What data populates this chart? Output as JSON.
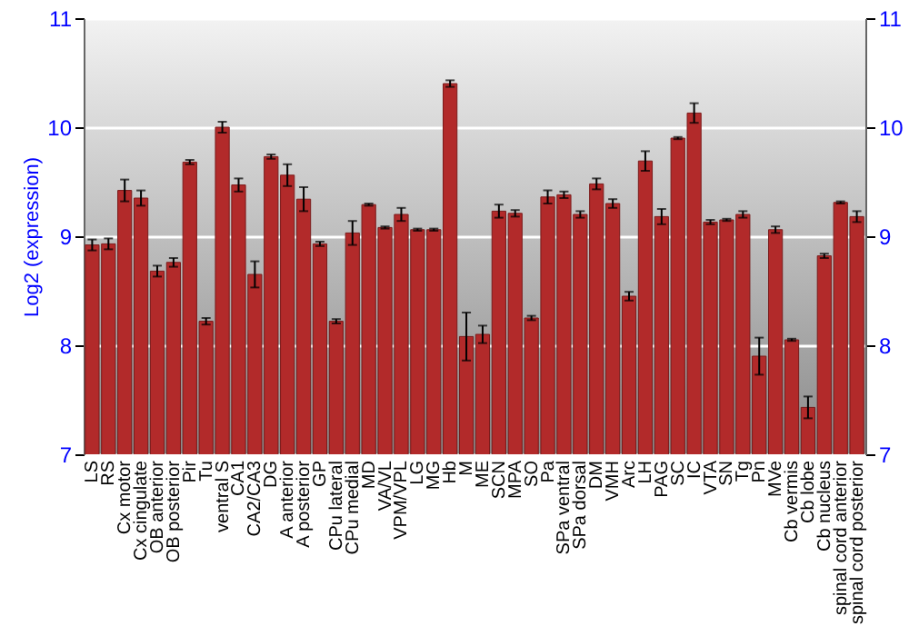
{
  "chart_data": {
    "type": "bar",
    "ylabel": "Log2 (expression)",
    "categories": [
      "LS",
      "RS",
      "Cx motor",
      "Cx cingulate",
      "OB anterior",
      "OB posterior",
      "Pir",
      "Tu",
      "ventral S",
      "CA1",
      "CA2/CA3",
      "DG",
      "A anterior",
      "A posterior",
      "GP",
      "CPu lateral",
      "CPu medial",
      "MD",
      "VA/VL",
      "VPM/VPL",
      "LG",
      "MG",
      "Hb",
      "M",
      "ME",
      "SCN",
      "MPA",
      "SO",
      "Pa",
      "SPa ventral",
      "SPa dorsal",
      "DM",
      "VMH",
      "Arc",
      "LH",
      "PAG",
      "SC",
      "IC",
      "VTA",
      "SN",
      "Tg",
      "Pn",
      "MVe",
      "Cb vermis",
      "Cb lobe",
      "Cb nucleus",
      "spinal cord anterior",
      "spinal cord posterior"
    ],
    "values": [
      8.92,
      8.93,
      9.42,
      9.35,
      8.68,
      8.76,
      9.68,
      8.22,
      10.0,
      9.47,
      8.65,
      9.73,
      9.56,
      9.34,
      8.93,
      8.22,
      9.03,
      9.29,
      9.08,
      9.2,
      9.06,
      9.06,
      10.4,
      8.08,
      8.1,
      9.23,
      9.21,
      8.25,
      9.36,
      9.38,
      9.2,
      9.48,
      9.3,
      8.45,
      9.69,
      9.18,
      9.9,
      10.13,
      9.13,
      9.15,
      9.2,
      7.9,
      9.06,
      8.05,
      7.43,
      8.82,
      9.31,
      9.18
    ],
    "errors": [
      0.05,
      0.05,
      0.1,
      0.07,
      0.05,
      0.04,
      0.02,
      0.03,
      0.05,
      0.06,
      0.12,
      0.02,
      0.1,
      0.11,
      0.02,
      0.02,
      0.11,
      0.01,
      0.01,
      0.06,
      0.01,
      0.01,
      0.03,
      0.22,
      0.08,
      0.06,
      0.03,
      0.02,
      0.06,
      0.03,
      0.03,
      0.05,
      0.04,
      0.04,
      0.09,
      0.07,
      0.01,
      0.09,
      0.02,
      0.01,
      0.03,
      0.17,
      0.03,
      0.01,
      0.1,
      0.02,
      0.01,
      0.05
    ],
    "color": "#b22a2a",
    "ylim": [
      7,
      11
    ],
    "yticks": [
      7,
      8,
      9,
      10,
      11
    ],
    "y2lim": [
      7,
      11
    ],
    "y2ticks": [
      7,
      8,
      9,
      10,
      11
    ],
    "grid": true
  }
}
